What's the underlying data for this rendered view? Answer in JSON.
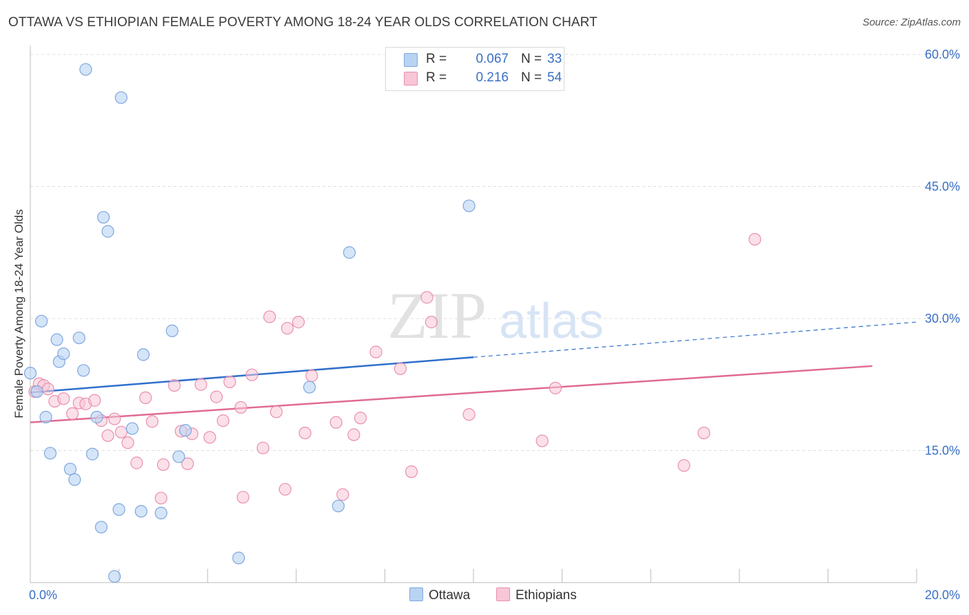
{
  "title": "OTTAWA VS ETHIOPIAN FEMALE POVERTY AMONG 18-24 YEAR OLDS CORRELATION CHART",
  "source": "Source: ZipAtlas.com",
  "watermark": {
    "zip": "ZIP",
    "atlas": "atlas"
  },
  "colors": {
    "ottawa_fill": "#b9d3f3",
    "ottawa_stroke": "#7ea6df",
    "ottawa_line": "#2f6fcc",
    "ethiopians_fill": "#f8c6d6",
    "ethiopians_stroke": "#e98fae",
    "ethiopians_line": "#e06a93",
    "tick_label": "#3a6fc4"
  },
  "legend": {
    "rows": [
      {
        "r_label": "R =",
        "r_value": "0.067",
        "n_label": "N =",
        "n_value": "33"
      },
      {
        "r_label": "R =",
        "r_value": "0.216",
        "n_label": "N =",
        "n_value": "54"
      }
    ]
  },
  "bottom_legend": {
    "ottawa": "Ottawa",
    "ethiopians": "Ethiopians"
  },
  "chart_data": {
    "type": "scatter",
    "title": "OTTAWA VS ETHIOPIAN FEMALE POVERTY AMONG 18-24 YEAR OLDS CORRELATION CHART",
    "xlabel": "",
    "ylabel": "Female Poverty Among 18-24 Year Olds",
    "xlim": [
      0,
      20
    ],
    "ylim": [
      0,
      60
    ],
    "x_tick_labels": [
      "0.0%",
      "20.0%"
    ],
    "y_ticks": [
      15,
      30,
      45,
      60
    ],
    "y_tick_labels": [
      "15.0%",
      "30.0%",
      "45.0%",
      "60.0%"
    ],
    "grid": true,
    "legend_position": "top-center",
    "series": [
      {
        "name": "Ottawa",
        "points": [
          [
            0.0,
            23.8
          ],
          [
            0.15,
            21.7
          ],
          [
            0.25,
            29.7
          ],
          [
            0.35,
            18.8
          ],
          [
            0.45,
            14.7
          ],
          [
            0.6,
            27.6
          ],
          [
            0.65,
            25.1
          ],
          [
            0.75,
            26.0
          ],
          [
            0.9,
            12.9
          ],
          [
            1.0,
            11.7
          ],
          [
            1.1,
            27.8
          ],
          [
            1.2,
            24.1
          ],
          [
            1.25,
            58.3
          ],
          [
            1.4,
            14.6
          ],
          [
            1.5,
            18.8
          ],
          [
            1.6,
            6.3
          ],
          [
            1.65,
            41.5
          ],
          [
            1.75,
            39.9
          ],
          [
            1.9,
            0.7
          ],
          [
            2.0,
            8.3
          ],
          [
            2.05,
            55.1
          ],
          [
            2.3,
            17.5
          ],
          [
            2.5,
            8.1
          ],
          [
            2.55,
            25.9
          ],
          [
            2.95,
            7.9
          ],
          [
            3.2,
            28.6
          ],
          [
            3.35,
            14.3
          ],
          [
            3.5,
            17.3
          ],
          [
            4.7,
            2.8
          ],
          [
            6.3,
            22.2
          ],
          [
            6.95,
            8.7
          ],
          [
            7.2,
            37.5
          ],
          [
            9.9,
            42.8
          ]
        ],
        "trend": {
          "x": [
            0,
            10
          ],
          "y": [
            21.6,
            25.6
          ],
          "dashed_extension_to": [
            20,
            29.6
          ]
        }
      },
      {
        "name": "Ethiopians",
        "points": [
          [
            0.1,
            21.7
          ],
          [
            0.2,
            22.6
          ],
          [
            0.3,
            22.4
          ],
          [
            0.4,
            22.0
          ],
          [
            0.55,
            20.6
          ],
          [
            0.75,
            20.9
          ],
          [
            0.95,
            19.2
          ],
          [
            1.1,
            20.4
          ],
          [
            1.25,
            20.3
          ],
          [
            1.45,
            20.7
          ],
          [
            1.6,
            18.4
          ],
          [
            1.75,
            16.7
          ],
          [
            1.9,
            18.6
          ],
          [
            2.05,
            17.1
          ],
          [
            2.2,
            15.9
          ],
          [
            2.4,
            13.6
          ],
          [
            2.6,
            21.0
          ],
          [
            2.75,
            18.3
          ],
          [
            2.95,
            9.6
          ],
          [
            3.0,
            13.4
          ],
          [
            3.25,
            22.4
          ],
          [
            3.4,
            17.2
          ],
          [
            3.55,
            13.5
          ],
          [
            3.65,
            16.9
          ],
          [
            3.85,
            22.5
          ],
          [
            4.05,
            16.5
          ],
          [
            4.2,
            21.1
          ],
          [
            4.35,
            18.4
          ],
          [
            4.5,
            22.8
          ],
          [
            4.75,
            19.9
          ],
          [
            4.8,
            9.7
          ],
          [
            5.0,
            23.6
          ],
          [
            5.25,
            15.3
          ],
          [
            5.4,
            30.2
          ],
          [
            5.55,
            19.4
          ],
          [
            5.75,
            10.6
          ],
          [
            5.8,
            28.9
          ],
          [
            6.05,
            29.6
          ],
          [
            6.2,
            17.0
          ],
          [
            6.35,
            23.5
          ],
          [
            6.9,
            18.2
          ],
          [
            7.05,
            10.0
          ],
          [
            7.3,
            16.8
          ],
          [
            7.45,
            18.7
          ],
          [
            7.8,
            26.2
          ],
          [
            8.35,
            24.3
          ],
          [
            8.6,
            12.6
          ],
          [
            8.95,
            32.4
          ],
          [
            9.05,
            29.6
          ],
          [
            9.9,
            19.1
          ],
          [
            11.55,
            16.1
          ],
          [
            11.85,
            22.1
          ],
          [
            14.75,
            13.3
          ],
          [
            15.2,
            17.0
          ],
          [
            16.35,
            39.0
          ]
        ],
        "trend": {
          "x": [
            0,
            19
          ],
          "y": [
            18.2,
            24.6
          ]
        }
      }
    ]
  }
}
